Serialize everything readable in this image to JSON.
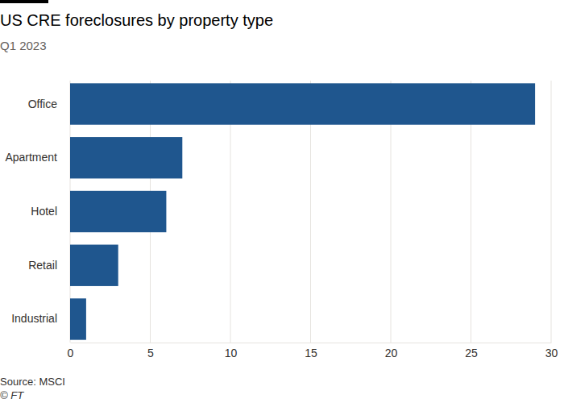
{
  "chart_data": {
    "type": "bar",
    "orientation": "horizontal",
    "title": "US CRE foreclosures by property type",
    "subtitle": "Q1 2023",
    "categories": [
      "Office",
      "Apartment",
      "Hotel",
      "Retail",
      "Industrial"
    ],
    "values": [
      29,
      7,
      6,
      3,
      1
    ],
    "color": "#1f568e",
    "xlim": [
      0,
      30
    ],
    "xticks": [
      0,
      5,
      10,
      15,
      20,
      25,
      30
    ],
    "grid": true,
    "annotations": [
      "Source: MSCI",
      "© FT"
    ]
  }
}
